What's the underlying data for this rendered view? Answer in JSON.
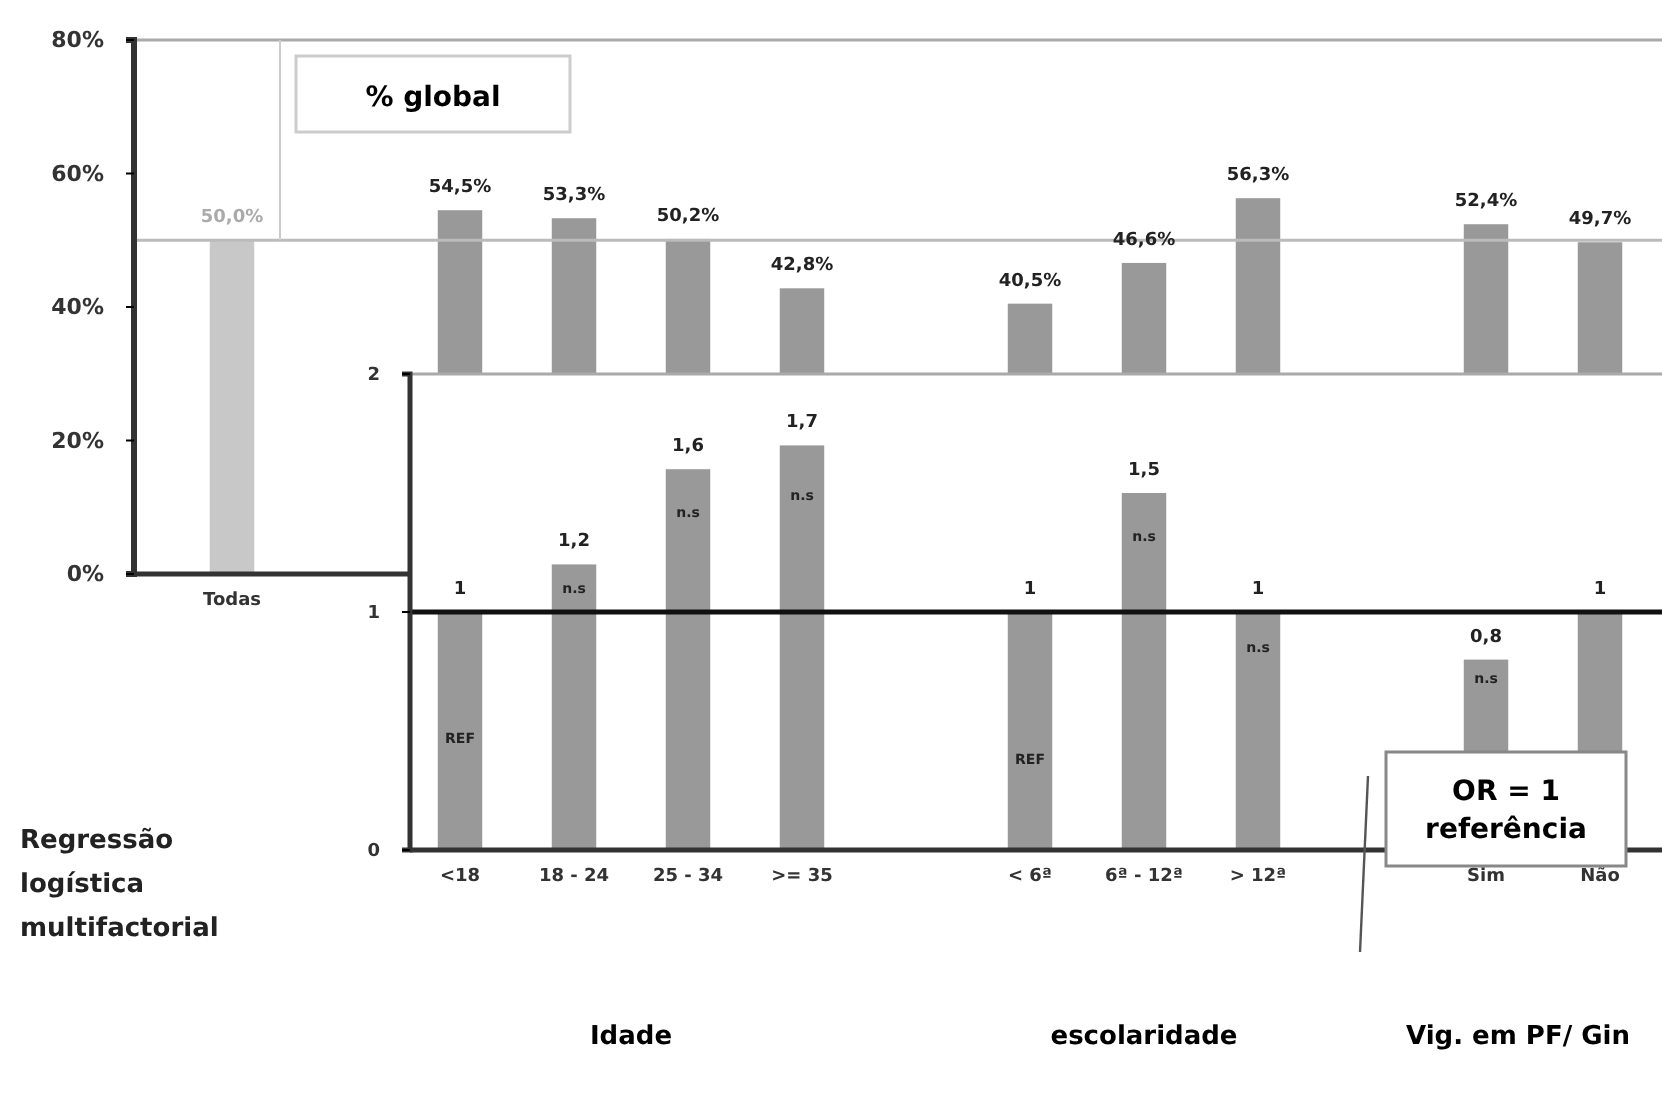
{
  "chart_data": [
    {
      "type": "bar",
      "categories": [
        "Todas",
        null,
        null,
        null,
        null,
        null,
        null,
        null,
        null,
        null,
        null,
        null,
        null
      ],
      "values": [
        50.0,
        null,
        54.5,
        53.3,
        50.2,
        42.8,
        null,
        40.5,
        46.6,
        56.3,
        null,
        52.4,
        49.7
      ],
      "colors": [
        "#c8c8c8",
        null,
        "#999999",
        "#999999",
        "#999999",
        "#999999",
        null,
        "#999999",
        "#999999",
        "#999999",
        null,
        "#999999",
        "#999999"
      ],
      "value_labels": [
        "50,0%",
        null,
        "54,5%",
        "53,3%",
        "50,2%",
        "42,8%",
        null,
        "40,5%",
        "46,6%",
        "56,3%",
        null,
        "52,4%",
        "49,7%"
      ],
      "ylim": [
        0,
        80
      ],
      "yticks": [
        {
          "value": 0,
          "label": "0%"
        },
        {
          "value": 20,
          "label": "20%"
        },
        {
          "value": 40,
          "label": "40%"
        },
        {
          "value": 60,
          "label": "60%"
        },
        {
          "value": 80,
          "label": "80%"
        }
      ],
      "ref_lines": [
        {
          "axis": "y",
          "value": 50.0,
          "color": "#bbbbbb"
        }
      ],
      "annotations": [
        "% global"
      ],
      "grid": false,
      "legend": false
    },
    {
      "type": "bar",
      "title": "Regressão logística multifactorial",
      "categories": [
        "<18",
        "18 - 24",
        "25 - 34",
        ">= 35",
        null,
        "< 6ª",
        "6ª - 12ª",
        "> 12ª",
        null,
        "Sim",
        "Não"
      ],
      "values": [
        1,
        1.2,
        1.6,
        1.7,
        null,
        1,
        1.5,
        1,
        null,
        0.8,
        1
      ],
      "color": "#999999",
      "value_labels": [
        "1",
        "1,2",
        "1,6",
        "1,7",
        null,
        "1",
        "1,5",
        "1",
        null,
        "0,8",
        "1"
      ],
      "ylim": [
        0,
        2
      ],
      "yticks": [
        0,
        1,
        2
      ],
      "ref_lines": [
        {
          "axis": "y",
          "value": 1,
          "color": "#111111"
        }
      ],
      "annotations": [
        "OR = 1 referência",
        "Idade",
        "escolaridade",
        "Vig. em PF/ Gin",
        "REF",
        "n.s",
        "n.s",
        "n.s",
        "REF",
        "n.s",
        "n.s",
        "n.s"
      ],
      "grid": false,
      "legend": false
    }
  ]
}
